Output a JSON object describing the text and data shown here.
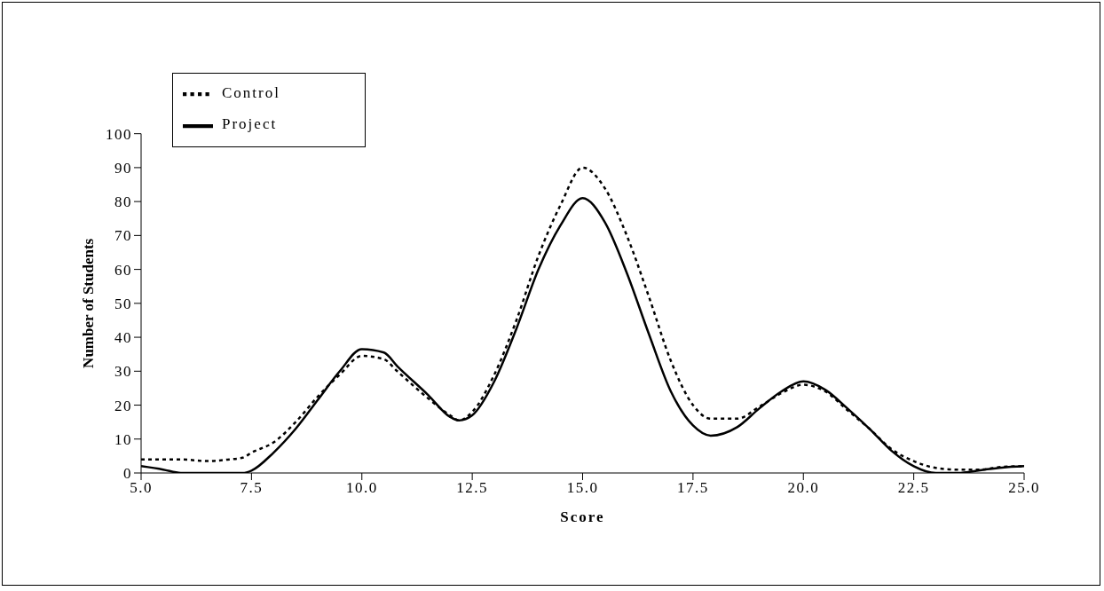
{
  "chart_data": {
    "type": "line",
    "xlabel": "Score",
    "ylabel": "Number of Students",
    "x": [
      5.0,
      5.5,
      5.9,
      6.5,
      7.0,
      7.3,
      7.5,
      8.0,
      8.5,
      9.0,
      9.5,
      10.0,
      10.5,
      10.8,
      11.5,
      12.0,
      12.2,
      12.5,
      13.0,
      13.5,
      14.0,
      14.5,
      15.0,
      15.5,
      16.0,
      16.5,
      17.0,
      17.5,
      17.9,
      18.5,
      19.0,
      19.5,
      20.0,
      20.5,
      21.0,
      21.5,
      22.0,
      22.5,
      23.0,
      23.5,
      24.0,
      24.5,
      25.0
    ],
    "series": [
      {
        "name": "Project",
        "color": "#000000",
        "line_style": "solid",
        "values": [
          2,
          1,
          0,
          0,
          0,
          0,
          0.7,
          6,
          13,
          21.5,
          30,
          36.5,
          35.5,
          31.5,
          23,
          16.5,
          15.5,
          17,
          27,
          42.5,
          60,
          73,
          81,
          74,
          59,
          41,
          24,
          14,
          11,
          13.5,
          19,
          24,
          27,
          24.5,
          19,
          13,
          6.5,
          2,
          0,
          0,
          0.8,
          1.6,
          2
        ]
      },
      {
        "name": "Control",
        "color": "#000000",
        "line_style": "dotted",
        "values": [
          4,
          4,
          4,
          3.5,
          4,
          4.5,
          6,
          9,
          15,
          22.5,
          29,
          34.5,
          33.5,
          30,
          22,
          17,
          15.5,
          18,
          29,
          45,
          64,
          79,
          90,
          84,
          70,
          52,
          33,
          20,
          16,
          16,
          19.5,
          23.5,
          26,
          24,
          18.5,
          13,
          7,
          3.5,
          1.5,
          1,
          1,
          1.8,
          2
        ]
      }
    ],
    "xlim": [
      5,
      25
    ],
    "xticks": [
      {
        "value": 5,
        "label": "5.0"
      },
      {
        "value": 7.5,
        "label": "7.5"
      },
      {
        "value": 10,
        "label": "10.0"
      },
      {
        "value": 12.5,
        "label": "12.5"
      },
      {
        "value": 15,
        "label": "15.0"
      },
      {
        "value": 17.5,
        "label": "17.5"
      },
      {
        "value": 20,
        "label": "20.0"
      },
      {
        "value": 22.5,
        "label": "22.5"
      },
      {
        "value": 25,
        "label": "25.0"
      }
    ],
    "ylim": [
      0,
      100
    ],
    "yticks": [
      0,
      10,
      20,
      30,
      40,
      50,
      60,
      70,
      80,
      90,
      100
    ],
    "grid": false,
    "legend": "top left",
    "marker": "none"
  }
}
